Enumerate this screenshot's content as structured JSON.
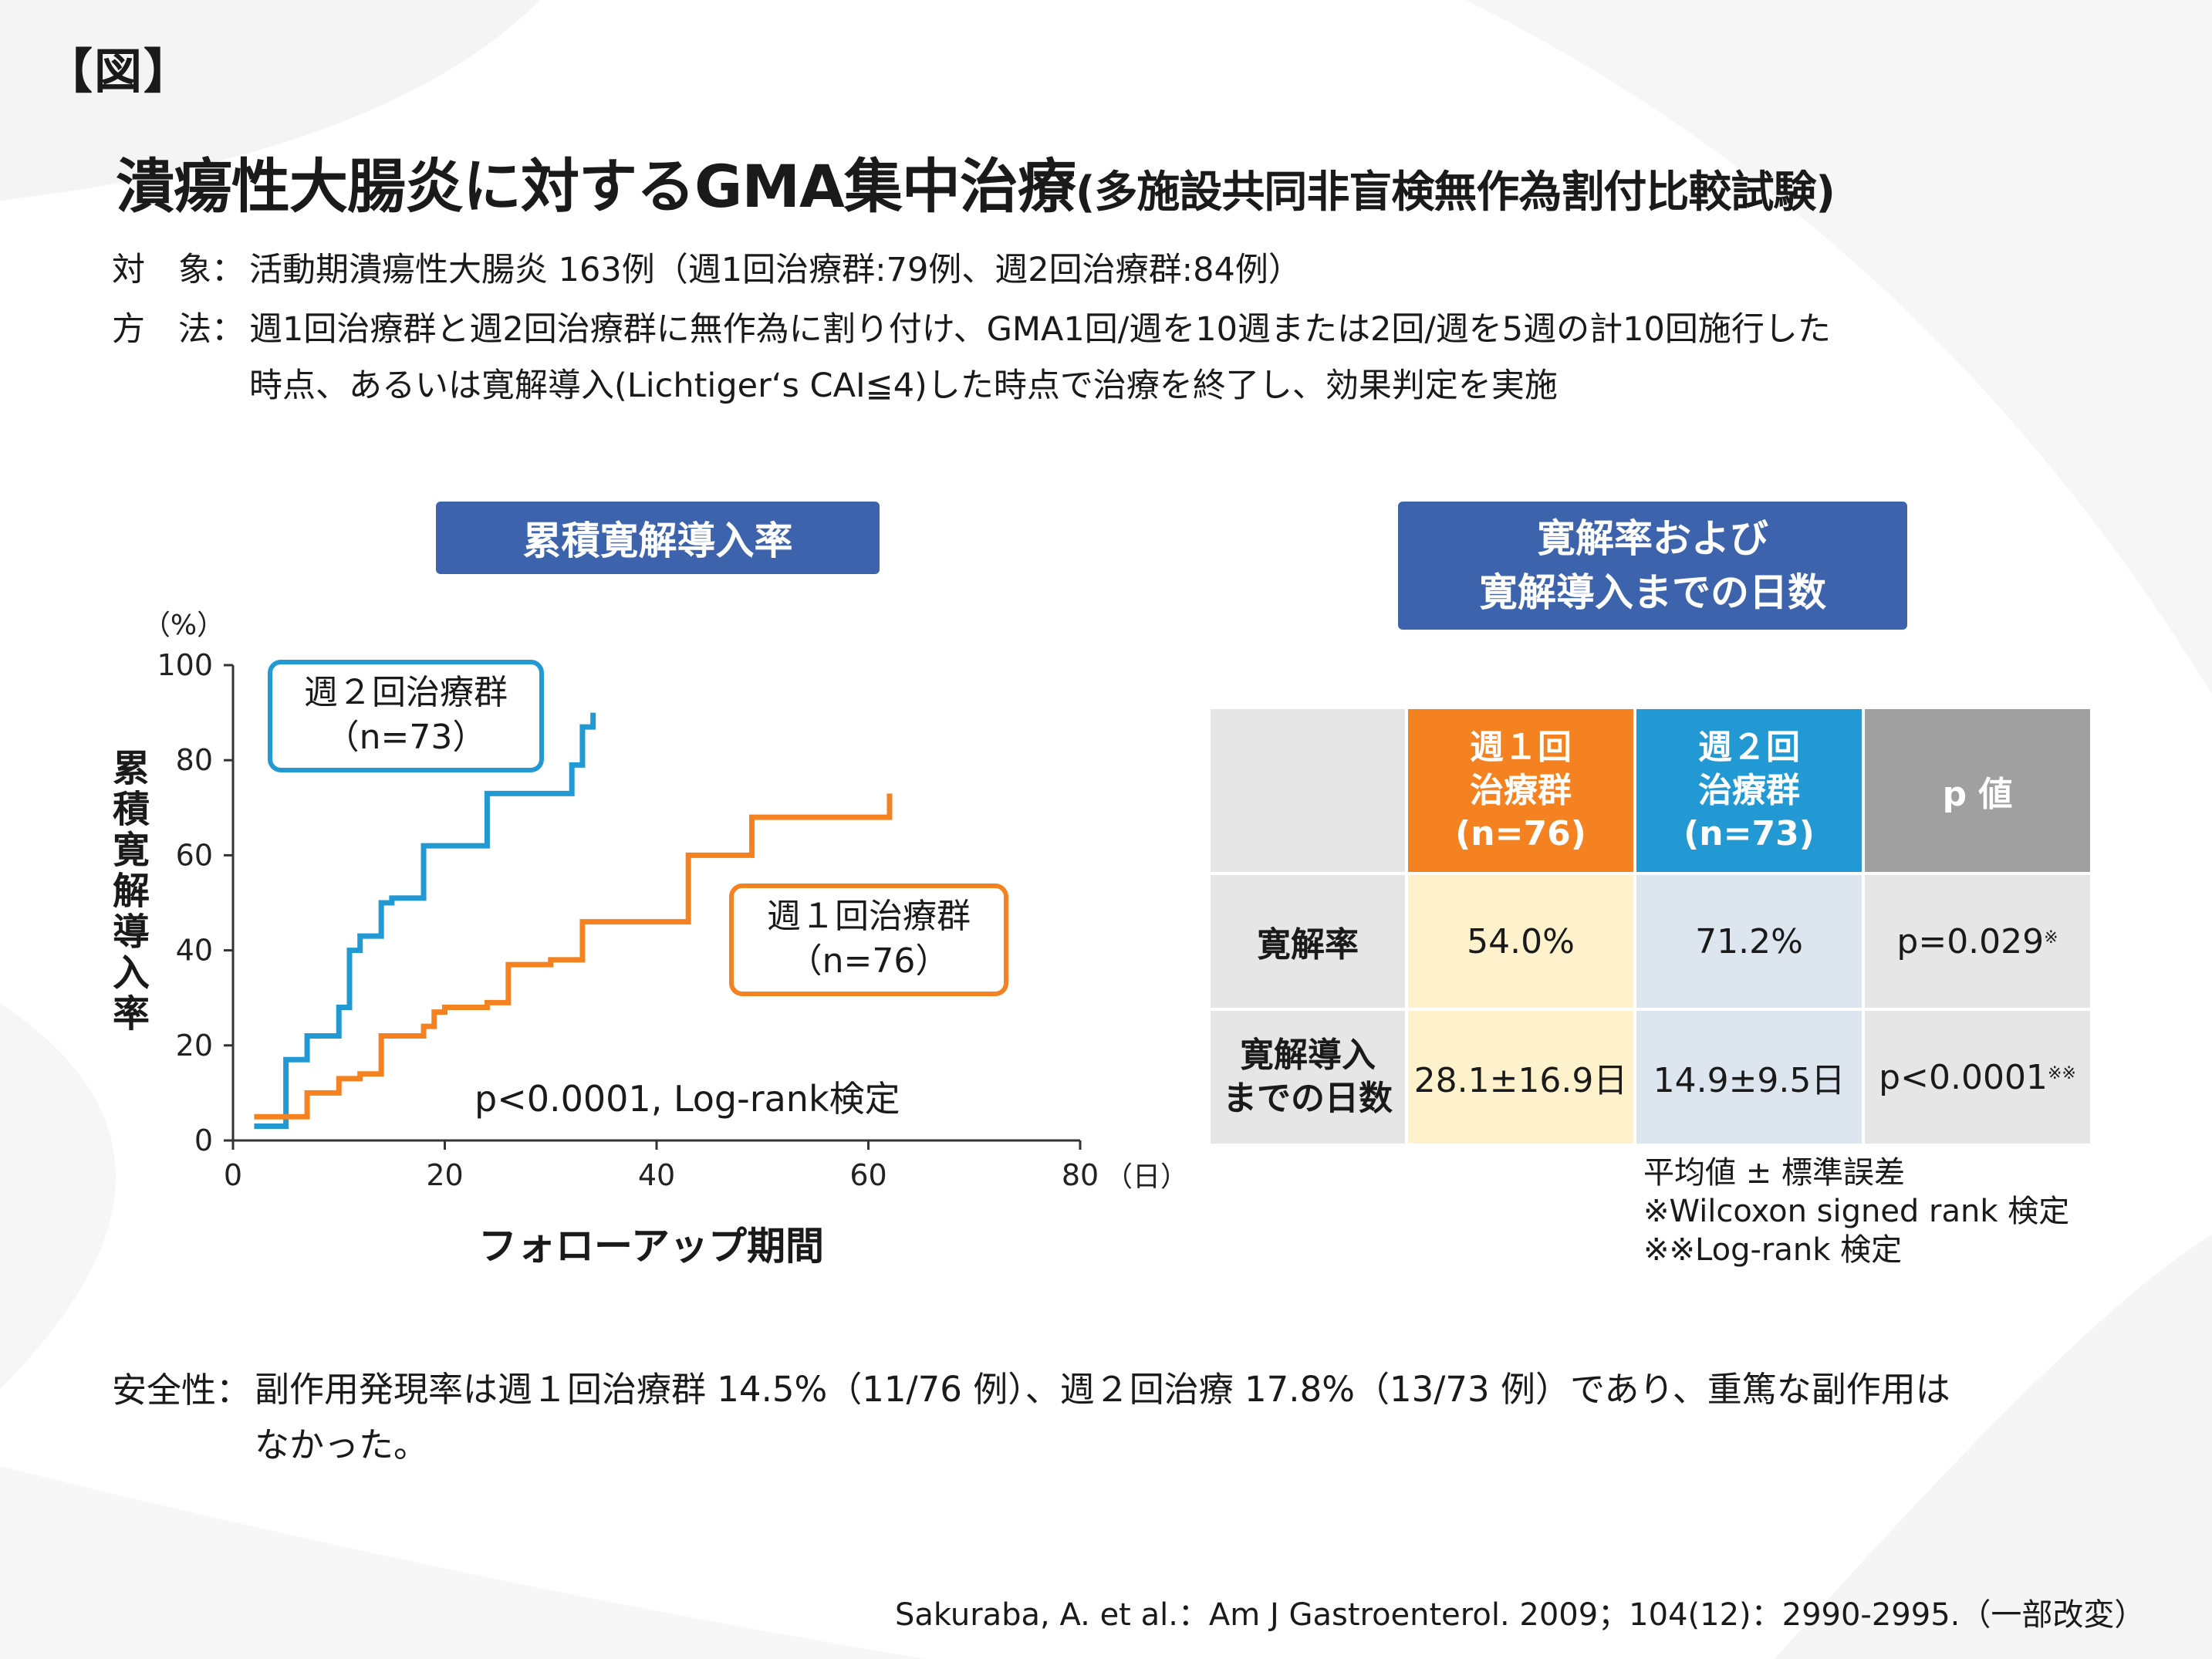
{
  "figure_label": "【図】",
  "title": {
    "main": "潰瘍性大腸炎に対するGMA集中治療",
    "sub": "(多施設共同非盲検無作為割付比較試験)"
  },
  "info": {
    "subject_label": "対　象：",
    "subject_text": "活動期潰瘍性大腸炎 163例（週1回治療群:79例、週2回治療群:84例）",
    "method_label": "方　法：",
    "method_line1": "週1回治療群と週2回治療群に無作為に割り付け、GMA1回/週を10週または2回/週を5週の計10回施行した",
    "method_line2": "時点、あるいは寛解導入(Lichtiger‘s CAI≦4)した時点で治療を終了し、効果判定を実施"
  },
  "left_panel": {
    "heading": "累積寛解導入率",
    "y_unit": "（%）",
    "y_label": "累積寛解導入率",
    "x_unit": "（日）",
    "x_label": "フォローアップ期間",
    "stat_text": "p<0.0001, Log-rank検定",
    "group2_box": [
      "週２回治療群",
      "（n=73）"
    ],
    "group1_box": [
      "週１回治療群",
      "（n=76）"
    ]
  },
  "chart_data": {
    "type": "line",
    "step": true,
    "xlim": [
      0,
      80
    ],
    "ylim": [
      0,
      100
    ],
    "x_ticks": [
      0,
      20,
      40,
      60,
      80
    ],
    "y_ticks": [
      0,
      20,
      40,
      60,
      80,
      100
    ],
    "xlabel": "フォローアップ期間",
    "ylabel": "累積寛解導入率",
    "series": [
      {
        "name": "週２回治療群（n=73）",
        "color": "#2399d4",
        "x": [
          2,
          3,
          5,
          6,
          7,
          8,
          9,
          10,
          11,
          12,
          14,
          15,
          18,
          24,
          31,
          32,
          33,
          34
        ],
        "y": [
          3,
          3,
          17,
          17,
          22,
          22,
          22,
          28,
          40,
          43,
          50,
          51,
          62,
          73,
          73,
          79,
          87,
          90
        ]
      },
      {
        "name": "週１回治療群（n=76）",
        "color": "#f58220",
        "x": [
          2,
          5,
          7,
          10,
          12,
          14,
          18,
          19,
          20,
          24,
          26,
          30,
          33,
          43,
          49,
          62
        ],
        "y": [
          5,
          5,
          10,
          13,
          14,
          22,
          24,
          27,
          28,
          29,
          37,
          38,
          46,
          60,
          68,
          73
        ]
      }
    ]
  },
  "right_panel": {
    "heading_line1": "寛解率および",
    "heading_line2": "寛解導入までの日数",
    "table": {
      "col1": [
        "週１回",
        "治療群",
        "(n=76)"
      ],
      "col2": [
        "週２回",
        "治療群",
        "(n=73)"
      ],
      "col3": "p 値",
      "row1_label": "寛解率",
      "row1": [
        "54.0%",
        "71.2%",
        "p=0.029",
        "※"
      ],
      "row2_label": [
        "寛解導入",
        "までの日数"
      ],
      "row2": [
        "28.1±16.9日",
        "14.9±9.5日",
        "p<0.0001",
        "※※"
      ]
    },
    "notes": [
      "平均値 ± 標準誤差",
      "※Wilcoxon signed rank 検定",
      "※※Log-rank 検定"
    ]
  },
  "safety": {
    "label": "安全性：",
    "line1": "副作用発現率は週１回治療群 14.5%（11/76 例）、週２回治療 17.8%（13/73 例）であり、重篤な副作用は",
    "line2": "なかった。"
  },
  "reference": "Sakuraba, A. et al.：Am J Gastroenterol. 2009；104(12)：2990-2995.（一部改変）",
  "colors": {
    "heading_blue": "#3e63ad",
    "orange": "#f58220",
    "blue": "#2399d4",
    "gray": "#a0a0a0"
  }
}
